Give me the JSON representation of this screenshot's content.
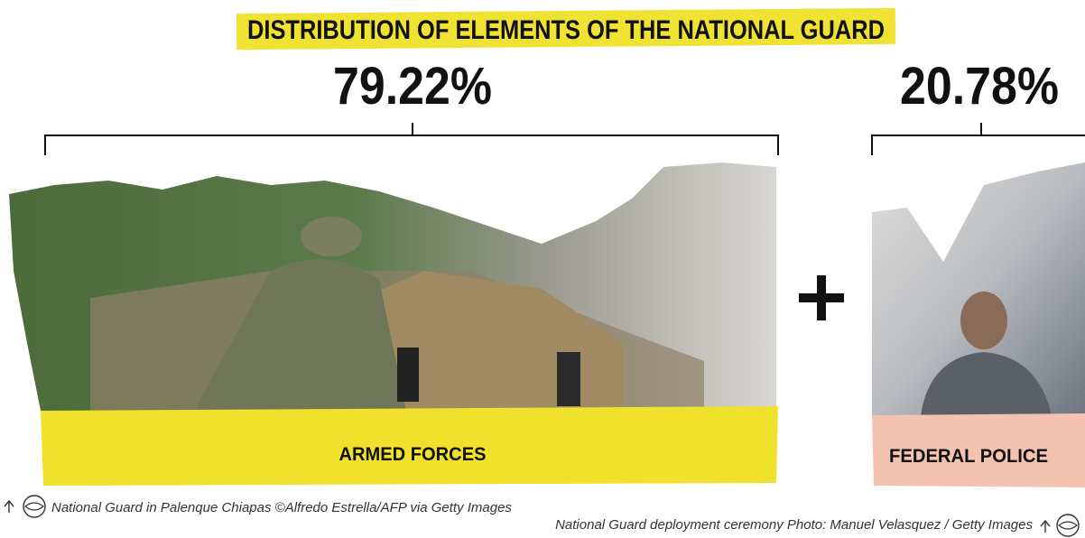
{
  "title": "DISTRIBUTION OF ELEMENTS OF THE NATIONAL GUARD",
  "groups": [
    {
      "percent": "79.22%",
      "label": "ARMED FORCES",
      "caption": "National Guard in Palenque Chiapas ©Alfredo Estrella/AFP via Getty Images"
    },
    {
      "percent": "20.78%",
      "label": "FEDERAL POLICE",
      "caption": "National Guard deployment ceremony Photo: Manuel Velasquez / Getty Images"
    }
  ]
}
